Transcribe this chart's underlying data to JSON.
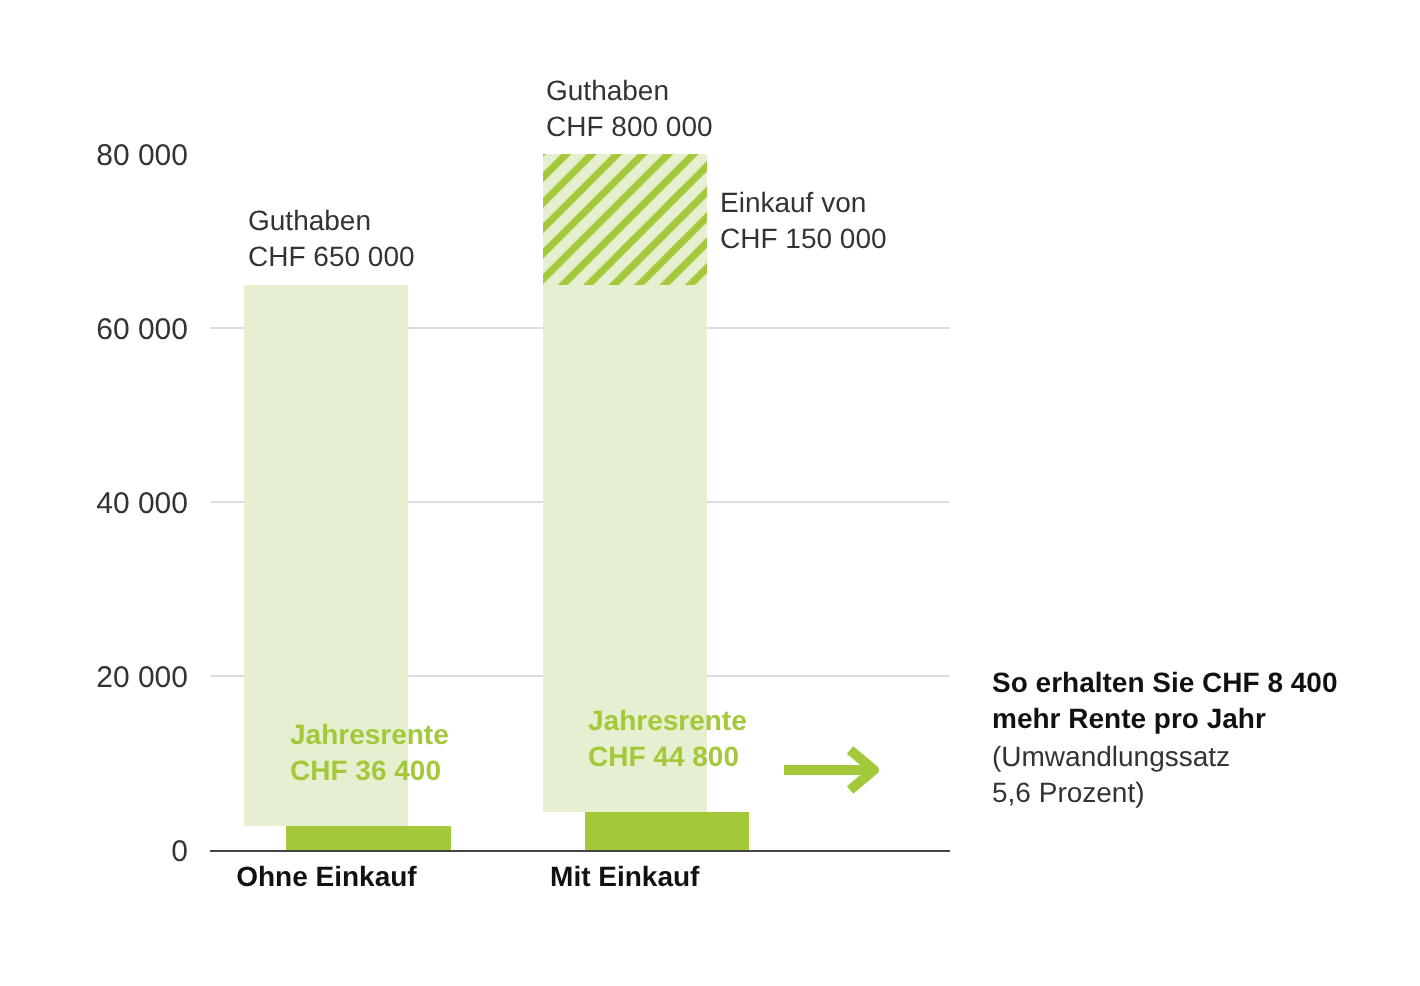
{
  "chart_data": {
    "type": "bar",
    "stacked": true,
    "categories": [
      "Ohne Einkauf",
      "Mit Einkauf"
    ],
    "series": [
      {
        "color": "#a3c93a",
        "values": [
          2800,
          4400
        ]
      },
      {
        "color": "#e6efcf",
        "values": [
          62200,
          60600
        ]
      },
      {
        "color": "#a3c93a",
        "values": [
          null,
          15000
        ]
      }
    ],
    "ylim": [
      0,
      80000
    ],
    "yticks": [
      0,
      {
        "value": 20000,
        "label": "20 000"
      },
      {
        "value": 40000,
        "label": "40 000"
      },
      {
        "value": 60000,
        "label": "60 000"
      },
      {
        "value": 80000,
        "label": "80 000"
      }
    ],
    "grid": "y",
    "annotations": [
      {
        "text": "Guthaben\nCHF 650 000",
        "x": "Ohne Einkauf",
        "y": 65000
      },
      {
        "text": "Guthaben\nCHF 800 000",
        "x": "Mit Einkauf",
        "y": 80000
      },
      "Einkauf von\nCHF 150 000",
      {
        "text": "Jahresrente\nCHF 36 400",
        "x": "Ohne Einkauf",
        "y": 2800
      },
      {
        "text": "Jahresrente\nCHF 44 800",
        "x": "Mit Einkauf",
        "y": 4400
      },
      "So erhalten Sie CHF 8 400\nmehr Rente pro Jahr",
      "(Umwandlungssatz\n5,6 Prozent)"
    ]
  }
}
